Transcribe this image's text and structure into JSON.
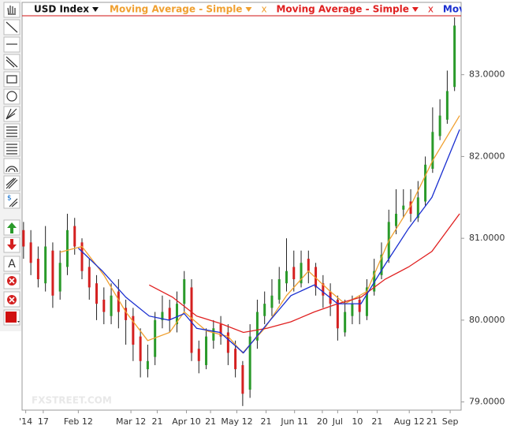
{
  "chart_data": {
    "type": "candlestick",
    "name": "USD Index",
    "legend_close": "x",
    "toolbar_text": "A",
    "toolbar_dollar": "$",
    "watermark": "FXSTREET.COM",
    "up_color": "#2a9a2a",
    "down_color": "#d42020",
    "candles": {
      "open": [
        81.1,
        80.95,
        80.75,
        80.45,
        80.85,
        80.35,
        80.65,
        81.15,
        80.95,
        80.65,
        80.45,
        80.25,
        80.05,
        80.35,
        80.15,
        80.05,
        79.8,
        79.4,
        79.55,
        80.0,
        80.15,
        79.95,
        80.2,
        80.4,
        79.65,
        79.45,
        79.75,
        79.95,
        79.85,
        79.65,
        79.45,
        79.15,
        79.75,
        80.05,
        80.15,
        80.25,
        80.45,
        80.65,
        80.45,
        80.75,
        80.65,
        80.45,
        80.35,
        80.25,
        79.85,
        80.05,
        80.25,
        80.05,
        80.35,
        80.55,
        80.75,
        81.15,
        81.35,
        81.45,
        81.25,
        81.45,
        81.85,
        82.25,
        82.45,
        82.85
      ],
      "high": [
        81.2,
        81.1,
        80.9,
        81.15,
        80.95,
        80.85,
        81.3,
        81.25,
        81.0,
        80.75,
        80.55,
        80.4,
        80.45,
        80.5,
        80.25,
        80.15,
        79.9,
        79.7,
        80.1,
        80.3,
        80.25,
        80.35,
        80.6,
        80.5,
        79.75,
        79.9,
        80.0,
        80.05,
        79.95,
        79.75,
        79.5,
        79.95,
        80.25,
        80.35,
        80.5,
        80.65,
        81.0,
        80.85,
        80.85,
        80.85,
        80.7,
        80.55,
        80.45,
        80.3,
        80.25,
        80.3,
        80.3,
        80.5,
        80.75,
        80.95,
        81.35,
        81.6,
        81.6,
        81.6,
        81.7,
        82.0,
        82.6,
        82.7,
        83.05,
        83.7
      ],
      "low": [
        80.75,
        80.55,
        80.4,
        80.35,
        80.15,
        80.25,
        80.55,
        80.8,
        80.5,
        80.25,
        80.0,
        79.95,
        79.95,
        79.9,
        79.7,
        79.5,
        79.3,
        79.3,
        79.45,
        79.9,
        79.85,
        79.85,
        80.1,
        79.5,
        79.35,
        79.4,
        79.65,
        79.7,
        79.45,
        79.3,
        78.95,
        79.05,
        79.65,
        79.95,
        80.05,
        80.2,
        80.35,
        80.35,
        80.4,
        80.45,
        80.3,
        80.15,
        80.05,
        79.75,
        79.8,
        79.95,
        79.95,
        80.0,
        80.3,
        80.5,
        80.7,
        81.05,
        81.25,
        81.2,
        81.2,
        81.4,
        81.8,
        82.2,
        82.4,
        82.8
      ],
      "close": [
        80.9,
        80.7,
        80.5,
        80.9,
        80.3,
        80.7,
        81.1,
        80.9,
        80.6,
        80.4,
        80.2,
        80.1,
        80.3,
        80.1,
        80.0,
        79.7,
        79.5,
        79.5,
        80.0,
        80.1,
        80.0,
        80.2,
        80.5,
        79.6,
        79.5,
        79.8,
        79.9,
        79.8,
        79.6,
        79.4,
        79.1,
        79.8,
        80.1,
        80.2,
        80.3,
        80.5,
        80.6,
        80.5,
        80.7,
        80.6,
        80.4,
        80.3,
        80.2,
        79.9,
        80.1,
        80.2,
        80.1,
        80.4,
        80.6,
        80.8,
        81.2,
        81.3,
        81.4,
        81.3,
        81.5,
        81.9,
        82.3,
        82.5,
        82.8,
        83.6
      ]
    },
    "series": [
      {
        "name": "Moving Average - Simple",
        "color": "#f0a030",
        "x": [
          5,
          8,
          11,
          14,
          17,
          20,
          22,
          25,
          28,
          30,
          33,
          36,
          39,
          42,
          44,
          47,
          50,
          53,
          56,
          59.7
        ],
        "values": [
          80.83,
          80.9,
          80.55,
          80.1,
          79.75,
          79.85,
          80.1,
          79.87,
          79.8,
          79.6,
          79.9,
          80.3,
          80.6,
          80.35,
          80.2,
          80.35,
          80.97,
          81.4,
          81.95,
          82.5
        ]
      },
      {
        "name": "Moving Average - Simple",
        "color": "#e02020",
        "x": [
          17.2,
          20.4,
          23.7,
          26.9,
          30.1,
          33.3,
          36.6,
          39.8,
          43,
          46.2,
          49.5,
          52.7,
          55.9,
          59.7
        ],
        "values": [
          80.43,
          80.28,
          80.05,
          79.96,
          79.85,
          79.9,
          79.98,
          80.1,
          80.2,
          80.28,
          80.5,
          80.65,
          80.84,
          81.3
        ]
      },
      {
        "name": "Moving Average - Simple",
        "color": "#1a2fd0",
        "x": [
          7.5,
          10.8,
          14,
          17.2,
          19.9,
          22,
          23.7,
          26.9,
          30.1,
          33.3,
          36.6,
          39.8,
          43,
          46.2,
          49.5,
          52.7,
          55.9,
          59.7
        ],
        "values": [
          80.88,
          80.6,
          80.28,
          80.05,
          80.0,
          80.08,
          79.9,
          79.85,
          79.6,
          79.95,
          80.3,
          80.43,
          80.2,
          80.2,
          80.68,
          81.12,
          81.5,
          82.33
        ]
      }
    ],
    "xlim": [
      -0.2,
      59.9
    ],
    "ylim": [
      78.9,
      83.72
    ],
    "xticks": [
      {
        "value": 0.3,
        "label": "'14"
      },
      {
        "value": 2.7,
        "label": "17"
      },
      {
        "value": 7.5,
        "label": "Feb 12"
      },
      {
        "value": 14.7,
        "label": "Mar 12"
      },
      {
        "value": 18.3,
        "label": "21"
      },
      {
        "value": 22.3,
        "label": "Apr 10"
      },
      {
        "value": 25.6,
        "label": "21"
      },
      {
        "value": 29.2,
        "label": "May 12"
      },
      {
        "value": 33.2,
        "label": "21"
      },
      {
        "value": 37.1,
        "label": "Jun 11"
      },
      {
        "value": 40.9,
        "label": "20"
      },
      {
        "value": 43,
        "label": "Jul"
      },
      {
        "value": 45.7,
        "label": "10"
      },
      {
        "value": 48.4,
        "label": "21"
      },
      {
        "value": 52.8,
        "label": "Aug 12"
      },
      {
        "value": 55.9,
        "label": "21"
      },
      {
        "value": 58.4,
        "label": "Sep"
      }
    ],
    "yticks": [
      {
        "value": 79,
        "label": "79.0000"
      },
      {
        "value": 80,
        "label": "80.0000"
      },
      {
        "value": 81,
        "label": "81.0000"
      },
      {
        "value": 82,
        "label": "82.0000"
      },
      {
        "value": 83,
        "label": "83.0000"
      }
    ]
  }
}
